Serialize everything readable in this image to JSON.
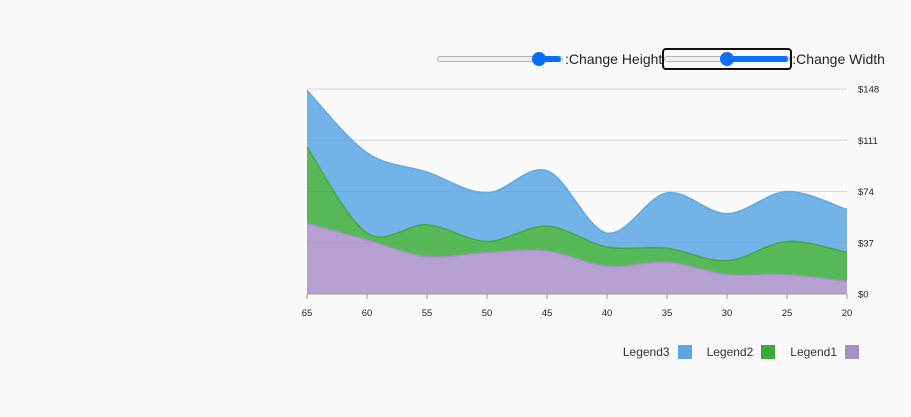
{
  "controls": {
    "height_label": ":Change Height",
    "width_label": ":Change Width",
    "height_value": 0.85,
    "width_value": 0.5
  },
  "chart_data": {
    "type": "area",
    "stacked": true,
    "x": [
      65,
      60,
      55,
      50,
      45,
      40,
      35,
      30,
      25,
      20
    ],
    "x_tick_labels": [
      "65",
      "60",
      "55",
      "50",
      "45",
      "40",
      "35",
      "30",
      "25",
      "20"
    ],
    "x_direction": "descending",
    "ylim": [
      0,
      148
    ],
    "y_ticks": [
      0,
      37,
      74,
      111,
      148
    ],
    "y_tick_labels": [
      "$0",
      "$37",
      "$74",
      "$111",
      "$148"
    ],
    "y_axis_position": "right",
    "grid": true,
    "series": [
      {
        "name": "Legend1",
        "color": "#a98fca",
        "values": [
          51,
          39,
          27,
          30,
          31,
          20,
          23,
          14,
          14,
          9
        ]
      },
      {
        "name": "Legend2",
        "color": "#3aab3a",
        "values": [
          55,
          5,
          23,
          8,
          18,
          14,
          10,
          10,
          24,
          21
        ]
      },
      {
        "name": "Legend3",
        "color": "#5ba6e3",
        "values": [
          41,
          58,
          38,
          35,
          40,
          10,
          40,
          34,
          36,
          31
        ]
      }
    ],
    "legend": {
      "position": "bottom-right",
      "order": [
        "Legend3",
        "Legend2",
        "Legend1"
      ]
    }
  }
}
